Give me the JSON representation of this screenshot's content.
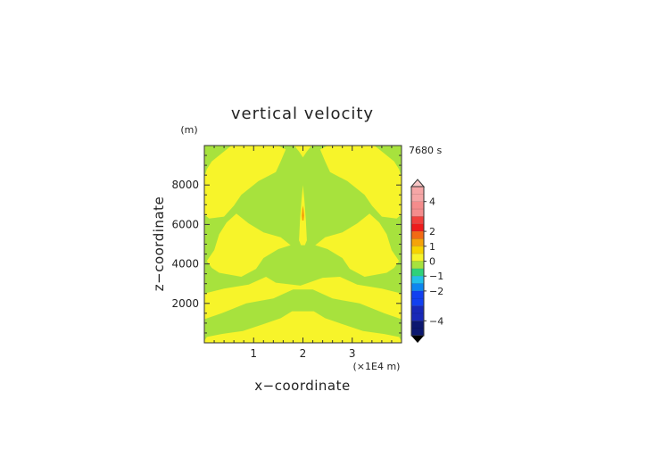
{
  "chart_data": {
    "type": "heatmap",
    "title": "vertical velocity",
    "xlabel": "x−coordinate",
    "ylabel": "z−coordinate",
    "x_unit": "(×1E4 m)",
    "y_unit": "(m)",
    "time_label": "7680 s",
    "xlim": [
      0,
      4
    ],
    "ylim": [
      0,
      10000
    ],
    "x_ticks": [
      1,
      2,
      3
    ],
    "x_tick_labels": [
      "1",
      "2",
      "3"
    ],
    "y_ticks": [
      2000,
      4000,
      6000,
      8000
    ],
    "y_tick_labels": [
      "2000",
      "4000",
      "6000",
      "8000"
    ],
    "colorbar": {
      "labels": [
        {
          "value": 4,
          "text": "4"
        },
        {
          "value": 2,
          "text": "2"
        },
        {
          "value": 1,
          "text": "1"
        },
        {
          "value": 0,
          "text": "0"
        },
        {
          "value": -1,
          "text": "−1"
        },
        {
          "value": -2,
          "text": "−2"
        },
        {
          "value": -4,
          "text": "−4"
        }
      ],
      "bands": [
        {
          "from": 5,
          "to": 4,
          "color": "#f6a6a6"
        },
        {
          "from": 4,
          "to": 3,
          "color": "#f48c8c"
        },
        {
          "from": 3,
          "to": 2.5,
          "color": "#f0403c"
        },
        {
          "from": 2.5,
          "to": 2,
          "color": "#ee1c1c"
        },
        {
          "from": 2,
          "to": 1.5,
          "color": "#f26a14"
        },
        {
          "from": 1.5,
          "to": 1,
          "color": "#f5a30a"
        },
        {
          "from": 1,
          "to": 0.5,
          "color": "#f7d400"
        },
        {
          "from": 0.5,
          "to": 0,
          "color": "#f7f42a"
        },
        {
          "from": 0,
          "to": -0.5,
          "color": "#a7e23d"
        },
        {
          "from": -0.5,
          "to": -1,
          "color": "#2fd17a"
        },
        {
          "from": -1,
          "to": -1.5,
          "color": "#22c0e8"
        },
        {
          "from": -1.5,
          "to": -2,
          "color": "#0d86f0"
        },
        {
          "from": -2,
          "to": -3,
          "color": "#1240f0"
        },
        {
          "from": -3,
          "to": -4,
          "color": "#1828b8"
        },
        {
          "from": -4,
          "to": -5,
          "color": "#0c1870"
        }
      ],
      "overflow_high_color": "#f8c6c6",
      "overflow_low_color": "#000000"
    },
    "field_colors": {
      "background_band": "#a7e23d",
      "positive_region": "#f7f42a",
      "core": "#f5a30a"
    },
    "field_regions": [
      {
        "level": 0,
        "label": "yellow, 0 to 0.5",
        "path": [
          [
            0,
            0.1
          ],
          [
            0.05,
            0.3
          ],
          [
            0.35,
            0.45
          ],
          [
            0.78,
            0.6
          ],
          [
            1.2,
            0.95
          ],
          [
            1.55,
            1.25
          ],
          [
            1.78,
            1.6
          ],
          [
            2.22,
            1.6
          ],
          [
            2.45,
            1.25
          ],
          [
            2.8,
            0.95
          ],
          [
            3.22,
            0.6
          ],
          [
            3.65,
            0.45
          ],
          [
            3.95,
            0.3
          ],
          [
            4,
            0.1
          ],
          [
            4,
            0
          ],
          [
            0,
            0
          ]
        ]
      },
      {
        "level": 0,
        "label": "yellow, 0 to 0.5",
        "path": [
          [
            0,
            2.5
          ],
          [
            0.4,
            2.75
          ],
          [
            0.9,
            2.95
          ],
          [
            1.25,
            3.35
          ],
          [
            1.45,
            3.05
          ],
          [
            1.95,
            2.9
          ],
          [
            2.4,
            3.3
          ],
          [
            2.75,
            3.35
          ],
          [
            3.1,
            2.95
          ],
          [
            3.6,
            2.75
          ],
          [
            4,
            2.5
          ],
          [
            4,
            1.2
          ],
          [
            3.65,
            1.5
          ],
          [
            3.15,
            2.0
          ],
          [
            2.6,
            2.25
          ],
          [
            2.2,
            2.7
          ],
          [
            1.8,
            2.7
          ],
          [
            1.4,
            2.25
          ],
          [
            0.85,
            2.0
          ],
          [
            0.35,
            1.5
          ],
          [
            0,
            1.2
          ]
        ]
      },
      {
        "level": 0,
        "label": "yellow, 0 to 0.5",
        "path": [
          [
            0.3,
            3.55
          ],
          [
            0.75,
            3.35
          ],
          [
            1.05,
            3.75
          ],
          [
            1.2,
            4.3
          ],
          [
            1.5,
            4.75
          ],
          [
            1.75,
            4.95
          ],
          [
            1.55,
            5.35
          ],
          [
            1.2,
            5.6
          ],
          [
            0.9,
            6.05
          ],
          [
            0.65,
            6.55
          ],
          [
            0.45,
            6.1
          ],
          [
            0.3,
            5.5
          ],
          [
            0.2,
            4.7
          ],
          [
            0.05,
            4.15
          ],
          [
            0.15,
            3.8
          ]
        ]
      },
      {
        "level": 0,
        "label": "yellow, 0 to 0.5",
        "path": [
          [
            3.7,
            3.55
          ],
          [
            3.25,
            3.35
          ],
          [
            2.95,
            3.75
          ],
          [
            2.8,
            4.3
          ],
          [
            2.5,
            4.75
          ],
          [
            2.25,
            4.95
          ],
          [
            2.45,
            5.35
          ],
          [
            2.8,
            5.6
          ],
          [
            3.1,
            6.05
          ],
          [
            3.35,
            6.55
          ],
          [
            3.55,
            6.1
          ],
          [
            3.7,
            5.5
          ],
          [
            3.8,
            4.7
          ],
          [
            3.95,
            4.15
          ],
          [
            3.85,
            3.8
          ]
        ]
      },
      {
        "level": 0,
        "label": "yellow, 0 to 0.5",
        "path": [
          [
            0.1,
            6.3
          ],
          [
            0.4,
            6.4
          ],
          [
            0.6,
            6.95
          ],
          [
            0.75,
            7.5
          ],
          [
            1.1,
            8.2
          ],
          [
            1.45,
            8.65
          ],
          [
            1.55,
            9.2
          ],
          [
            1.65,
            9.8
          ],
          [
            1.5,
            10
          ],
          [
            0.55,
            10
          ],
          [
            0.4,
            9.7
          ],
          [
            0.15,
            9.2
          ],
          [
            0.05,
            8.8
          ],
          [
            0,
            8.4
          ],
          [
            0,
            6.5
          ]
        ]
      },
      {
        "level": 0,
        "label": "yellow, 0 to 0.5",
        "path": [
          [
            3.9,
            6.3
          ],
          [
            3.6,
            6.4
          ],
          [
            3.4,
            6.95
          ],
          [
            3.25,
            7.5
          ],
          [
            2.9,
            8.2
          ],
          [
            2.55,
            8.65
          ],
          [
            2.45,
            9.2
          ],
          [
            2.35,
            9.8
          ],
          [
            2.5,
            10
          ],
          [
            3.45,
            10
          ],
          [
            3.6,
            9.7
          ],
          [
            3.85,
            9.2
          ],
          [
            3.95,
            8.8
          ],
          [
            4,
            8.4
          ],
          [
            4,
            6.5
          ]
        ]
      },
      {
        "level": 0,
        "label": "yellow, 0 to 0.5",
        "path": [
          [
            1.82,
            10
          ],
          [
            1.92,
            9.7
          ],
          [
            2,
            9.4
          ],
          [
            2.08,
            9.7
          ],
          [
            2.18,
            10
          ]
        ]
      },
      {
        "level": 0,
        "label": "yellow, 0 to 0.5",
        "path": [
          [
            1.92,
            5.2
          ],
          [
            1.94,
            6.2
          ],
          [
            1.97,
            7.2
          ],
          [
            2,
            8.0
          ],
          [
            2.03,
            7.2
          ],
          [
            2.06,
            6.2
          ],
          [
            2.08,
            5.2
          ],
          [
            2.04,
            4.95
          ],
          [
            1.96,
            4.95
          ]
        ]
      },
      {
        "level": 0.5,
        "label": "orange core, 0.5 to 1",
        "path": [
          [
            1.975,
            6.45
          ],
          [
            1.985,
            6.75
          ],
          [
            2,
            6.95
          ],
          [
            2.015,
            6.75
          ],
          [
            2.025,
            6.45
          ],
          [
            2.012,
            6.2
          ],
          [
            1.988,
            6.2
          ]
        ]
      }
    ]
  }
}
